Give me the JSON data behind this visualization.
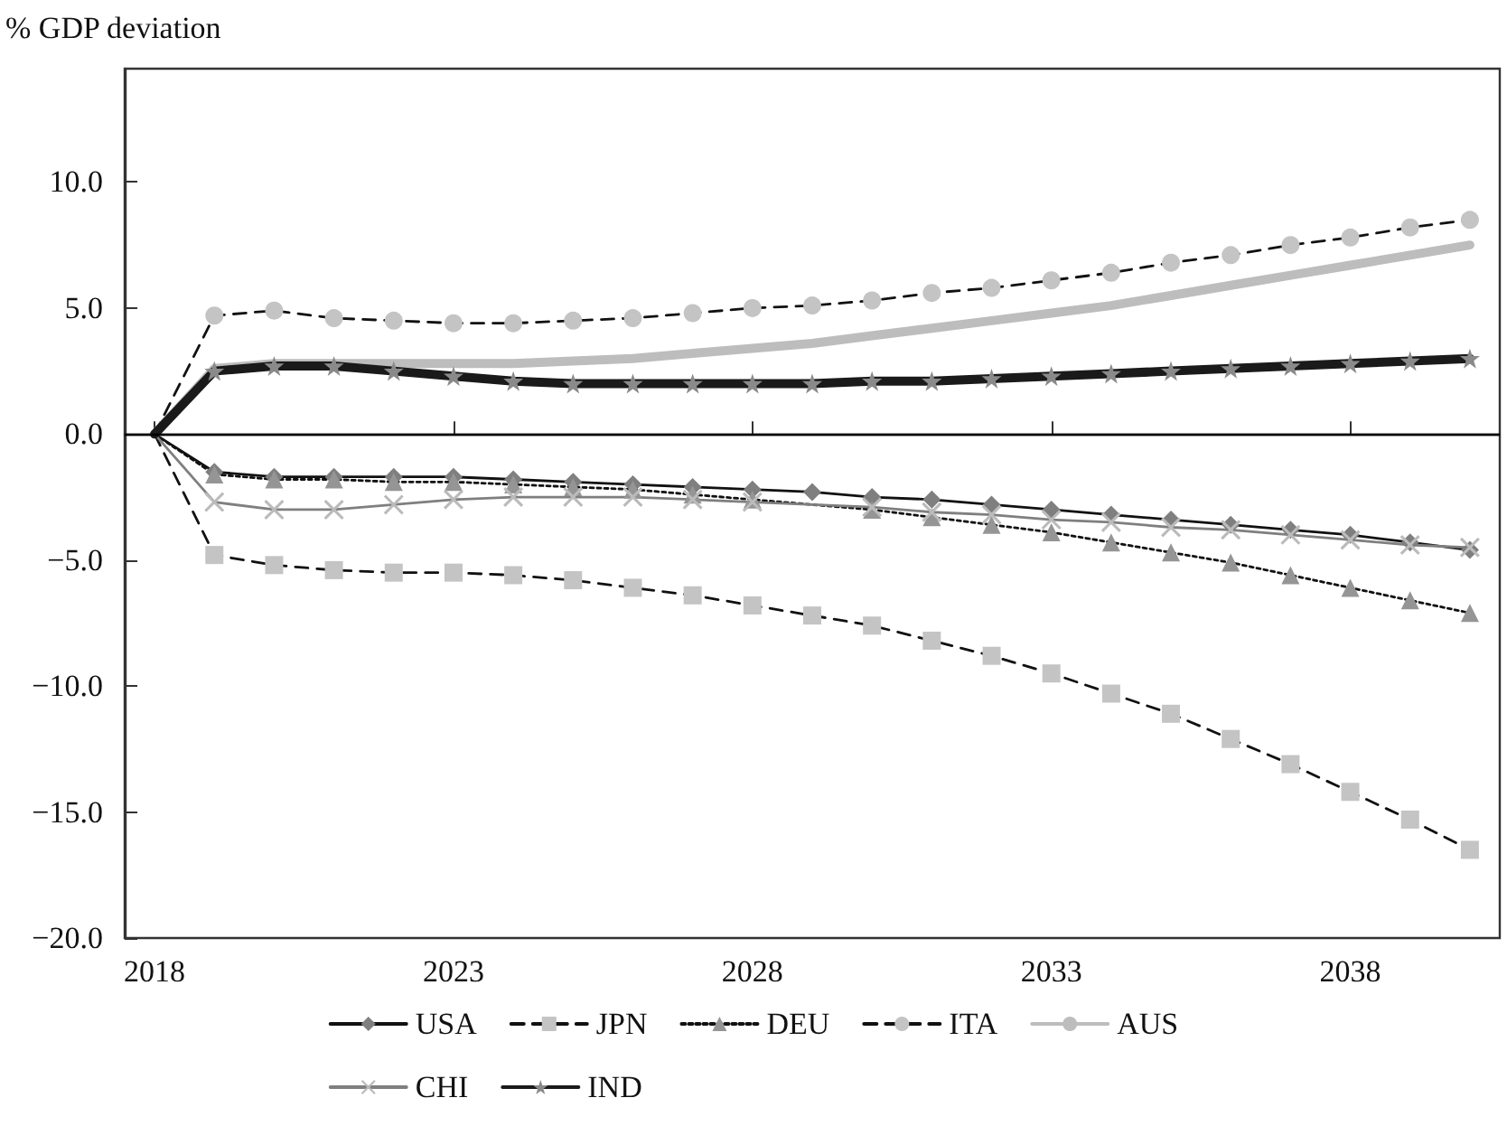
{
  "chart_data": {
    "type": "line",
    "ylabel": "% GDP deviation",
    "x": [
      2018,
      2019,
      2020,
      2021,
      2022,
      2023,
      2024,
      2025,
      2026,
      2027,
      2028,
      2029,
      2030,
      2031,
      2032,
      2033,
      2034,
      2035,
      2036,
      2037,
      2038,
      2039,
      2040
    ],
    "xlim": [
      2017.5,
      2040.5
    ],
    "xticks": [
      2018,
      2023,
      2028,
      2033,
      2038
    ],
    "ylim": [
      -20,
      14.5
    ],
    "yticks": [
      {
        "value": -20,
        "label": "−20.0"
      },
      {
        "value": -15,
        "label": "−15.0"
      },
      {
        "value": -10,
        "label": "−10.0"
      },
      {
        "value": -5,
        "label": "−5.0"
      },
      {
        "value": 0,
        "label": "0.0"
      },
      {
        "value": 5,
        "label": "5.0"
      },
      {
        "value": 10,
        "label": "10.0"
      }
    ],
    "grid": false,
    "legend": "bottom",
    "ref_lines": [
      {
        "axis": "y",
        "value": 0,
        "color": "#000000",
        "line_style": "solid"
      }
    ],
    "series": [
      {
        "name": "USA",
        "color": "#7f7f7f",
        "marker": "diamond",
        "line_style": "solid",
        "values": [
          0,
          -1.5,
          -1.7,
          -1.7,
          -1.7,
          -1.7,
          -1.8,
          -1.9,
          -2.0,
          -2.1,
          -2.2,
          -2.3,
          -2.5,
          -2.6,
          -2.8,
          -3.0,
          -3.2,
          -3.4,
          -3.6,
          -3.8,
          -4.0,
          -4.3,
          -4.6
        ]
      },
      {
        "name": "JPN",
        "color": "#c4c4c4",
        "marker": "square",
        "line_style": "dashed",
        "values": [
          0,
          -4.8,
          -5.2,
          -5.4,
          -5.5,
          -5.5,
          -5.6,
          -5.8,
          -6.1,
          -6.4,
          -6.8,
          -7.2,
          -7.6,
          -8.2,
          -8.8,
          -9.5,
          -10.3,
          -11.1,
          -12.1,
          -13.1,
          -14.2,
          -15.3,
          -16.5
        ]
      },
      {
        "name": "DEU",
        "color": "#959595",
        "marker": "triangle",
        "line_style": "dotted",
        "values": [
          0,
          -1.6,
          -1.8,
          -1.8,
          -1.9,
          -1.9,
          -2.0,
          -2.1,
          -2.2,
          -2.4,
          -2.6,
          -2.8,
          -3.0,
          -3.3,
          -3.6,
          -3.9,
          -4.3,
          -4.7,
          -5.1,
          -5.6,
          -6.1,
          -6.6,
          -7.1
        ]
      },
      {
        "name": "ITA",
        "color": "#c4c4c4",
        "marker": "circle",
        "line_style": "dashed",
        "values": [
          0,
          4.7,
          4.9,
          4.6,
          4.5,
          4.4,
          4.4,
          4.5,
          4.6,
          4.8,
          5.0,
          5.1,
          5.3,
          5.6,
          5.8,
          6.1,
          6.4,
          6.8,
          7.1,
          7.5,
          7.8,
          8.2,
          8.5
        ]
      },
      {
        "name": "AUS",
        "color": "#bdbdbd",
        "marker": "none",
        "line_style": "solid",
        "values": [
          0,
          2.6,
          2.8,
          2.8,
          2.8,
          2.8,
          2.8,
          2.9,
          3.0,
          3.2,
          3.4,
          3.6,
          3.9,
          4.2,
          4.5,
          4.8,
          5.1,
          5.5,
          5.9,
          6.3,
          6.7,
          7.1,
          7.5
        ]
      },
      {
        "name": "CHI",
        "color": "#7f7f7f",
        "marker": "cross",
        "line_style": "solid",
        "values": [
          0,
          -2.7,
          -3.0,
          -3.0,
          -2.8,
          -2.6,
          -2.5,
          -2.5,
          -2.5,
          -2.6,
          -2.7,
          -2.8,
          -2.9,
          -3.1,
          -3.2,
          -3.4,
          -3.5,
          -3.7,
          -3.8,
          -4.0,
          -4.2,
          -4.4,
          -4.5
        ]
      },
      {
        "name": "IND",
        "color": "#1a1a1a",
        "marker": "star",
        "line_style": "solid",
        "values": [
          0,
          2.5,
          2.7,
          2.7,
          2.5,
          2.3,
          2.1,
          2.0,
          2.0,
          2.0,
          2.0,
          2.0,
          2.1,
          2.1,
          2.2,
          2.3,
          2.4,
          2.5,
          2.6,
          2.7,
          2.8,
          2.9,
          3.0
        ]
      }
    ]
  }
}
